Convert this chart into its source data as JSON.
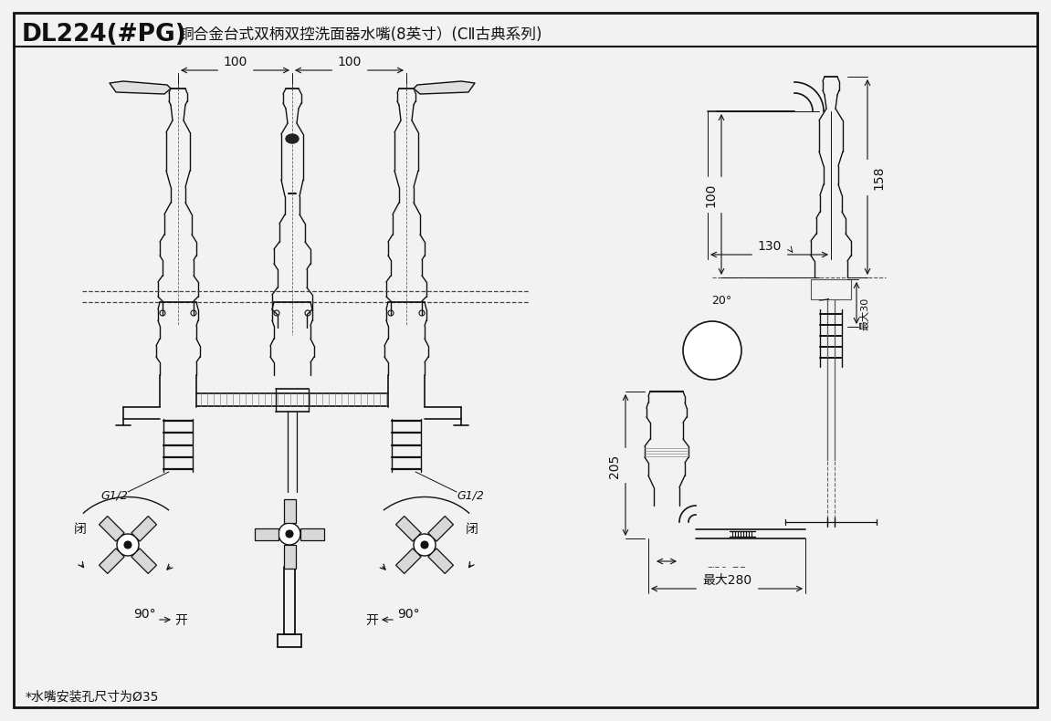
{
  "title_bold": "DL224(#PG)",
  "title_normal": "  铜合金台式双柄双控洗面器水嘴(8英寸）(CII古典系列)",
  "footnote": "*水嘴安装孔尺寸为Ø35",
  "bg_color": "#f2f2f2",
  "lc": "#111111",
  "fig_width": 11.31,
  "fig_height": 7.71,
  "dim_labels": {
    "100l": "100",
    "100r": "100",
    "158": "158",
    "130": "130",
    "100sv": "100",
    "20deg": "20°",
    "max30": "最大30",
    "205": "205",
    "d3175": "Ø31.75",
    "max280": "最大280",
    "g12l": "G1/2",
    "g12r": "G1/2",
    "90deg_l": "90°",
    "90deg_r": "90°",
    "kai_l": "开",
    "kai_r": "开",
    "bi_l": "闭",
    "bi_r": "闭"
  }
}
